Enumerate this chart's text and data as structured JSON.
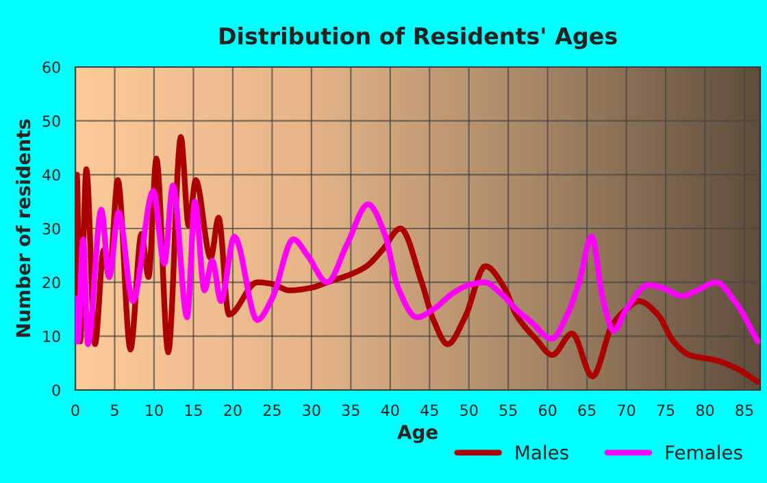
{
  "chart_data": {
    "type": "line",
    "title": "Distribution of Residents' Ages",
    "xlabel": "Age",
    "ylabel": "Number of residents",
    "xlim": [
      0,
      87
    ],
    "xticks": [
      0,
      5,
      10,
      15,
      20,
      25,
      30,
      35,
      40,
      45,
      50,
      55,
      60,
      65,
      70,
      75,
      80,
      85
    ],
    "ylim": [
      0,
      60
    ],
    "yticks": [
      0,
      10,
      20,
      30,
      40,
      50,
      60
    ],
    "grid": true,
    "legend": "bottom right",
    "marker": "none",
    "line_style": "solid",
    "series": [
      {
        "name": "Males",
        "color": "#aa0000",
        "x": [
          0,
          0.2,
          0.6,
          1.4,
          2.5,
          3.6,
          4.3,
          5.4,
          7,
          8.4,
          9.3,
          10.3,
          11.8,
          13.4,
          14.4,
          15.3,
          17.2,
          18.2,
          19.5,
          23.1,
          25,
          27.2,
          30,
          32,
          35,
          37,
          39,
          41.3,
          44,
          45.5,
          47.3,
          49.5,
          52.1,
          54.5,
          56,
          58.5,
          60.6,
          63.1,
          65.7,
          68.2,
          70,
          71.6,
          74,
          76,
          78,
          81.4,
          84,
          86.7
        ],
        "values": [
          17,
          40,
          9,
          41,
          8.5,
          26,
          21,
          39,
          7.5,
          29,
          21,
          43,
          7,
          47,
          30.5,
          39,
          24.5,
          32,
          14,
          20,
          19.7,
          18.5,
          19,
          20,
          21.5,
          23,
          26,
          30,
          20,
          13,
          8.5,
          13.5,
          23,
          19,
          14,
          9.5,
          6.5,
          10.5,
          2.5,
          12,
          15,
          16.5,
          14,
          9,
          6.5,
          5.5,
          4,
          1.5
        ]
      },
      {
        "name": "Females",
        "color": "#ff00ff",
        "x": [
          0,
          0.3,
          1,
          1.6,
          3.3,
          4.3,
          5.5,
          7.3,
          9.9,
          11.3,
          12.4,
          14.2,
          15.2,
          16.4,
          17.4,
          18.5,
          20.2,
          23.1,
          25,
          27.7,
          29.5,
          32,
          34.5,
          37.2,
          39.3,
          41,
          43.4,
          45.5,
          48,
          50,
          52,
          54,
          56,
          58,
          60.5,
          62.5,
          64,
          65.6,
          67,
          68.4,
          70,
          72.8,
          74.5,
          77.1,
          79,
          81.4,
          84,
          86.7
        ],
        "values": [
          17,
          9,
          28,
          8.5,
          33.5,
          21,
          33,
          16.5,
          37,
          23.5,
          38,
          13.5,
          35,
          18.5,
          24,
          16.5,
          28.5,
          13,
          17,
          28,
          25,
          20,
          27,
          34.5,
          29,
          19,
          13.5,
          15,
          18,
          19.5,
          20,
          18,
          15,
          12.5,
          9.5,
          14,
          20,
          28.5,
          17,
          11,
          15,
          19.5,
          19,
          17.5,
          18.5,
          20,
          16,
          9
        ]
      }
    ]
  }
}
